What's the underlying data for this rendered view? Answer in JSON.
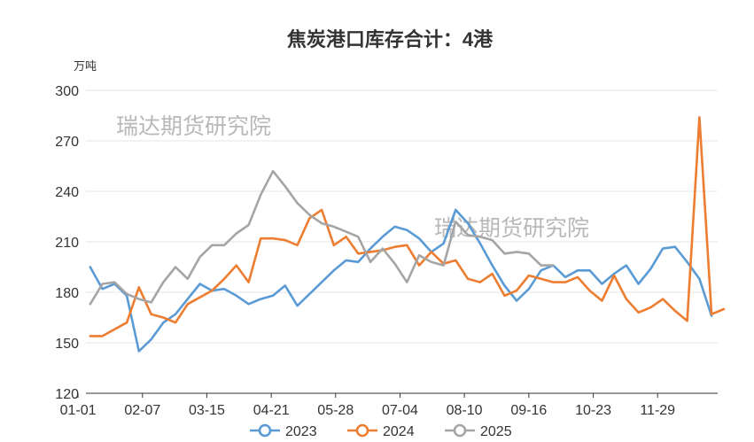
{
  "chart_data": {
    "type": "line",
    "title": "焦炭港口库存合计：4港",
    "yunit": "万吨",
    "ylim": [
      120,
      300
    ],
    "yticks": [
      120,
      150,
      180,
      210,
      240,
      270,
      300
    ],
    "xtick_labels": [
      "01-01",
      "02-07",
      "03-15",
      "04-21",
      "05-28",
      "07-04",
      "08-10",
      "09-16",
      "10-23",
      "11-29"
    ],
    "xtick_weeks": [
      0,
      5.29,
      10.57,
      15.86,
      21.14,
      26.43,
      31.71,
      37,
      42.29,
      47.57
    ],
    "grid": "horizontal",
    "legend": "bottom",
    "watermarks": [
      "瑞达期货研究院",
      "瑞达期货研究院"
    ],
    "series": [
      {
        "name": "2023",
        "color": "#5b9bd5",
        "values": [
          195,
          182,
          185,
          178,
          145,
          152,
          162,
          167,
          176,
          185,
          181,
          182,
          178,
          173,
          176,
          178,
          184,
          172,
          179,
          186,
          193,
          199,
          198,
          206,
          213,
          219,
          217,
          212,
          204,
          209,
          229,
          221,
          209,
          196,
          184,
          175,
          182,
          193,
          196,
          189,
          193,
          193,
          185,
          191,
          196,
          185,
          194,
          206,
          207,
          198,
          188,
          166
        ]
      },
      {
        "name": "2024",
        "color": "#ed7d31",
        "values": [
          154,
          154,
          158,
          162,
          183,
          167,
          165,
          162,
          173,
          177,
          181,
          188,
          196,
          186,
          212,
          212,
          211,
          208,
          224,
          229,
          208,
          213,
          203,
          204,
          205,
          207,
          208,
          196,
          204,
          197,
          199,
          188,
          186,
          191,
          178,
          181,
          190,
          188,
          186,
          186,
          189,
          181,
          175,
          190,
          176,
          168,
          171,
          176,
          169,
          163,
          284,
          167,
          170
        ]
      },
      {
        "name": "2025",
        "color": "#a5a5a5",
        "values": [
          173,
          185,
          186,
          179,
          176,
          174,
          186,
          195,
          188,
          201,
          208,
          208,
          215,
          220,
          238,
          252,
          243,
          233,
          226,
          221,
          219,
          216,
          213,
          198,
          206,
          197,
          186,
          202,
          198,
          196,
          222,
          214,
          213,
          211,
          203,
          204,
          203,
          196,
          196
        ]
      }
    ]
  }
}
